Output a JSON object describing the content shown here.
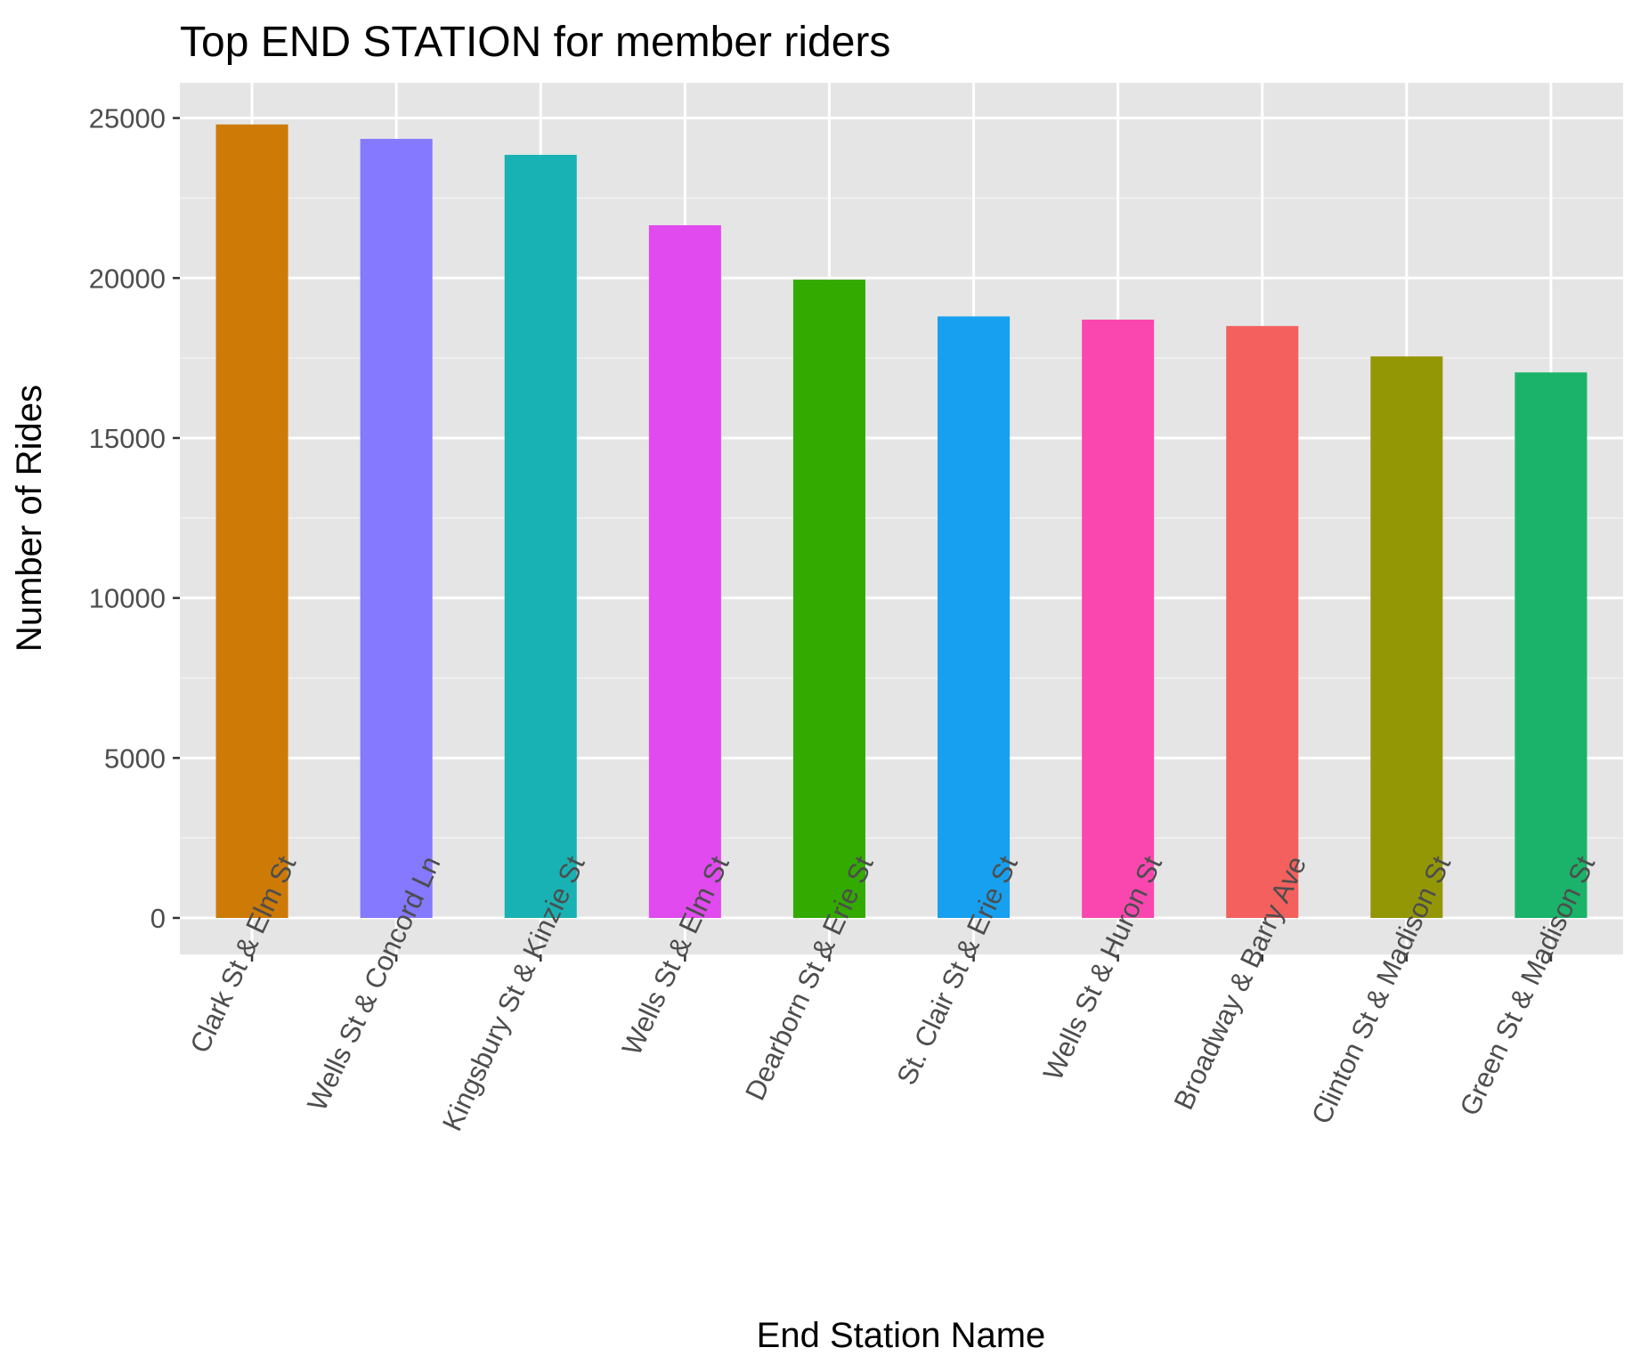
{
  "chart_data": {
    "type": "bar",
    "title": "Top END STATION for member riders",
    "xlabel": "End Station Name",
    "ylabel": "Number of Rides",
    "ylim": [
      -1200,
      26000
    ],
    "yticks": [
      0,
      5000,
      10000,
      15000,
      20000,
      25000
    ],
    "categories": [
      "Clark St & Elm St",
      "Wells St & Concord Ln",
      "Kingsbury St & Kinzie St",
      "Wells St & Elm St",
      "Dearborn St & Erie St",
      "St. Clair St & Erie St",
      "Wells St & Huron St",
      "Broadway & Barry Ave",
      "Clinton St & Madison St",
      "Green St & Madison St"
    ],
    "values": [
      24800,
      24350,
      23850,
      21650,
      19950,
      18800,
      18700,
      18500,
      17550,
      17050
    ],
    "colors": [
      "#CD7A06",
      "#8479FF",
      "#19B2B4",
      "#E04AEE",
      "#33AA00",
      "#17A0EF",
      "#FA47B0",
      "#F3605D",
      "#939706",
      "#1AB369"
    ],
    "panel_background": "#E5E5E5",
    "grid": true,
    "legend": "none",
    "x_tick_label_rotation_deg": -65
  }
}
